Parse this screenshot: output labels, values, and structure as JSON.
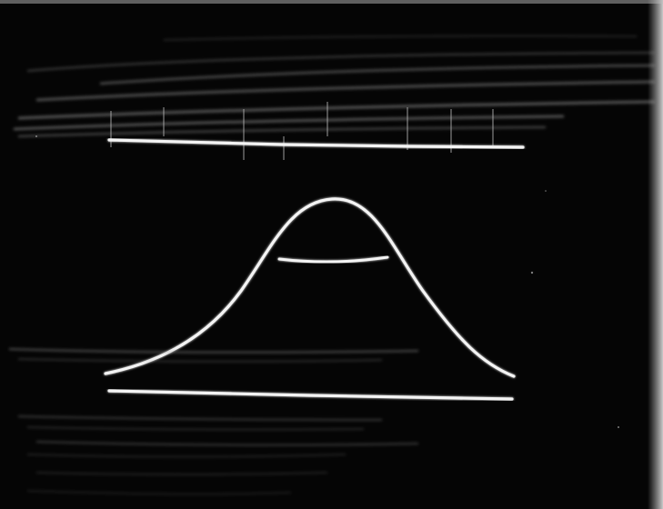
{
  "image": {
    "subject": "oscilloscope-trace-photograph",
    "colors": {
      "background": "#050505",
      "trace": "#f4f4f4",
      "streak": "#9a9a9a",
      "frame_edge": "#d8d8d8"
    }
  }
}
